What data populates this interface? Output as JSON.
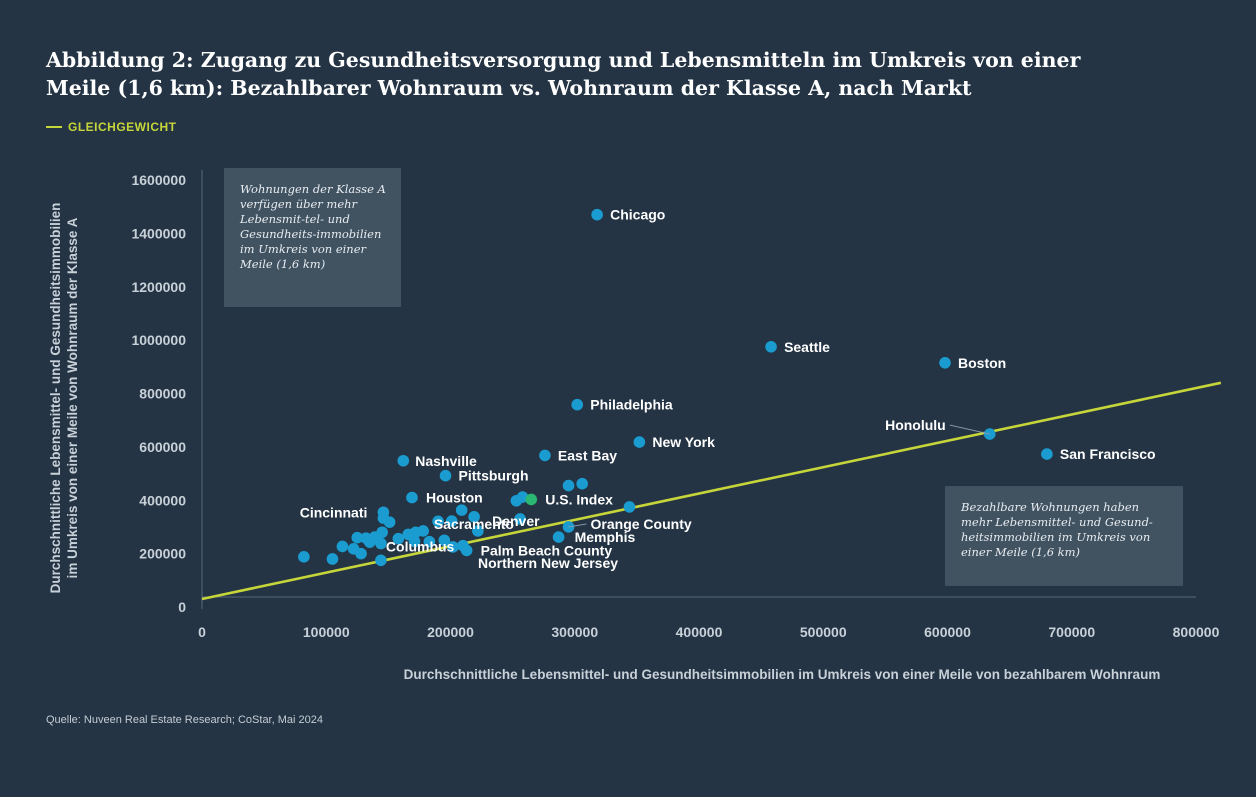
{
  "title": "Abbildung 2: Zugang zu Gesundheitsversorgung und Lebensmitteln im Umkreis von einer Meile (1,6 km): Bezahlbarer Wohnraum vs. Wohnraum der Klasse A, nach Markt",
  "legend": {
    "label": "GLEICHGEWICHT",
    "color": "#c6d63a"
  },
  "notes": {
    "class_a": "Wohnungen der Klasse A verfügen über mehr Lebensmit-tel- und Gesundheits-immobilien im Umkreis von einer Meile (1,6 km)",
    "affordable": "Bezahlbare Wohnungen haben mehr Lebensmittel- und Gesund-heitsimmobilien im Umkreis von einer Meile (1,6 km)"
  },
  "source": "Quelle: Nuveen Real Estate Research; CoStar, Mai 2024",
  "colors": {
    "background": "#243444",
    "point": "#1a9cd0",
    "highlight": "#2bb673",
    "equilibrium": "#c6d63a"
  },
  "chart_data": {
    "type": "scatter",
    "xlabel": "Durchschnittliche Lebensmittel- und Gesundheitsimmobilien im Umkreis von einer Meile von bezahlbarem Wohnraum",
    "ylabel_lines": [
      "Durchschnittliche Lebensmittel- und Gesundheitsimmobilien",
      "im Umkreis von einer Meile von Wohnraum der Klasse A"
    ],
    "xlim": [
      0,
      800000
    ],
    "ylim": [
      0,
      1600000
    ],
    "x_ticks": [
      "0",
      "100000",
      "200000",
      "300000",
      "400000",
      "500000",
      "600000",
      "700000",
      "800000"
    ],
    "y_ticks": [
      "0",
      "200000",
      "400000",
      "600000",
      "800000",
      "1000000",
      "1200000",
      "1400000",
      "1600000"
    ],
    "equilibrium_line": {
      "from": [
        0,
        30000
      ],
      "to": [
        820000,
        840000
      ]
    },
    "points": [
      {
        "label": "Chicago",
        "x": 318000,
        "y": 1470000
      },
      {
        "label": "Seattle",
        "x": 458000,
        "y": 975000
      },
      {
        "label": "Boston",
        "x": 598000,
        "y": 915000
      },
      {
        "label": "Philadelphia",
        "x": 302000,
        "y": 758000
      },
      {
        "label": "Honolulu",
        "x": 634000,
        "y": 648000
      },
      {
        "label": "New York",
        "x": 352000,
        "y": 618000
      },
      {
        "label": "San Francisco",
        "x": 680000,
        "y": 573000
      },
      {
        "label": "East Bay",
        "x": 276000,
        "y": 568000
      },
      {
        "label": "Nashville",
        "x": 162000,
        "y": 548000
      },
      {
        "label": "Pittsburgh",
        "x": 196000,
        "y": 492000
      },
      {
        "label": "",
        "x": 295000,
        "y": 455000
      },
      {
        "label": "",
        "x": 306000,
        "y": 462000
      },
      {
        "label": "Houston",
        "x": 169000,
        "y": 410000
      },
      {
        "label": "",
        "x": 258000,
        "y": 412000
      },
      {
        "label": "",
        "x": 253000,
        "y": 398000
      },
      {
        "label": "U.S. Index",
        "x": 265000,
        "y": 403000,
        "highlight": true
      },
      {
        "label": "",
        "x": 344000,
        "y": 375000
      },
      {
        "label": "",
        "x": 209000,
        "y": 363000
      },
      {
        "label": "Cincinnati",
        "x": 146000,
        "y": 355000
      },
      {
        "label": "",
        "x": 146000,
        "y": 333000
      },
      {
        "label": "",
        "x": 151000,
        "y": 318000
      },
      {
        "label": "",
        "x": 219000,
        "y": 338000
      },
      {
        "label": "",
        "x": 201000,
        "y": 322000
      },
      {
        "label": "",
        "x": 190000,
        "y": 321000
      },
      {
        "label": "Denver",
        "x": 256000,
        "y": 330000
      },
      {
        "label": "Orange County",
        "x": 295000,
        "y": 300000
      },
      {
        "label": "Sacramento",
        "x": 222000,
        "y": 285000
      },
      {
        "label": "",
        "x": 178000,
        "y": 285000
      },
      {
        "label": "",
        "x": 172000,
        "y": 280000
      },
      {
        "label": "",
        "x": 166000,
        "y": 272000
      },
      {
        "label": "",
        "x": 145000,
        "y": 280000
      },
      {
        "label": "",
        "x": 139000,
        "y": 262000
      },
      {
        "label": "",
        "x": 132000,
        "y": 258000
      },
      {
        "label": "",
        "x": 125000,
        "y": 260000
      },
      {
        "label": "",
        "x": 158000,
        "y": 256000
      },
      {
        "label": "Memphis",
        "x": 287000,
        "y": 262000
      },
      {
        "label": "",
        "x": 195000,
        "y": 250000
      },
      {
        "label": "",
        "x": 183000,
        "y": 245000
      },
      {
        "label": "",
        "x": 171000,
        "y": 246000
      },
      {
        "label": "Columbus",
        "x": 144000,
        "y": 238000
      },
      {
        "label": "",
        "x": 135000,
        "y": 243000
      },
      {
        "label": "",
        "x": 113000,
        "y": 227000
      },
      {
        "label": "",
        "x": 122000,
        "y": 218000
      },
      {
        "label": "",
        "x": 128000,
        "y": 200000
      },
      {
        "label": "Palm Beach County",
        "x": 213000,
        "y": 212000
      },
      {
        "label": "",
        "x": 210000,
        "y": 230000
      },
      {
        "label": "Northern New Jersey",
        "x": 202000,
        "y": 225000
      },
      {
        "label": "",
        "x": 82000,
        "y": 188000
      },
      {
        "label": "",
        "x": 105000,
        "y": 180000
      },
      {
        "label": "",
        "x": 144000,
        "y": 175000
      }
    ]
  }
}
